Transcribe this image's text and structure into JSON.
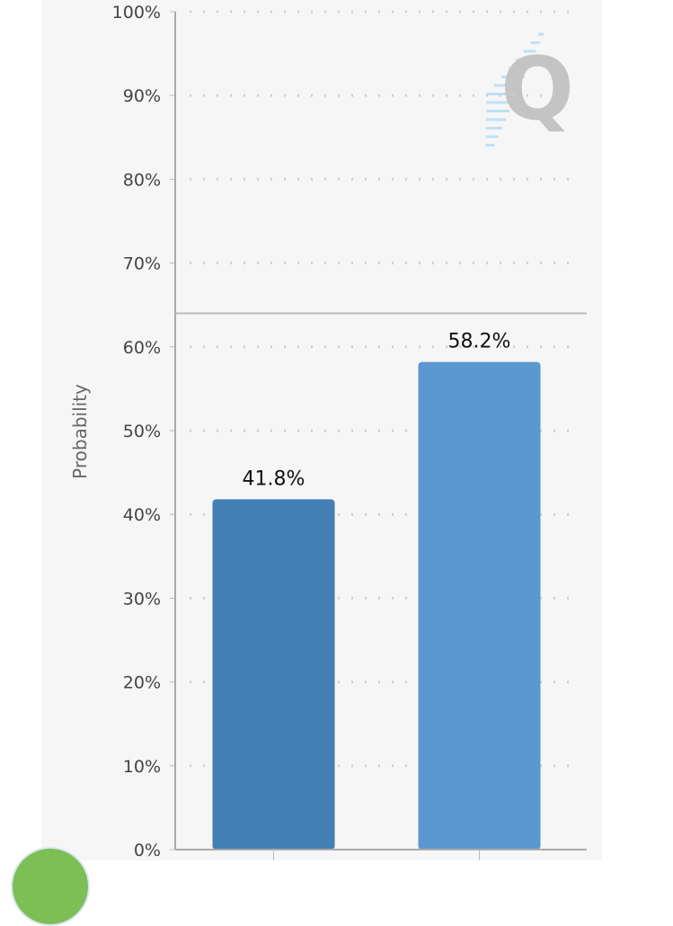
{
  "chart_data": {
    "type": "bar",
    "categories": [
      "",
      ""
    ],
    "values": [
      41.8,
      58.2
    ],
    "data_labels": [
      "41.8%",
      "58.2%"
    ],
    "colors": [
      "#427fb5",
      "#5b98cf"
    ],
    "ylabel": "Probability",
    "xlabel": "",
    "ylim": [
      0,
      100
    ],
    "yticks": [
      0,
      10,
      20,
      30,
      40,
      50,
      60,
      70,
      80,
      90,
      100
    ],
    "ytick_labels": [
      "0%",
      "10%",
      "20%",
      "30%",
      "40%",
      "50%",
      "60%",
      "70%",
      "80%",
      "90%",
      "100%"
    ],
    "reference_line": 64,
    "grid": "dotted horizontal",
    "watermark": "Q"
  }
}
